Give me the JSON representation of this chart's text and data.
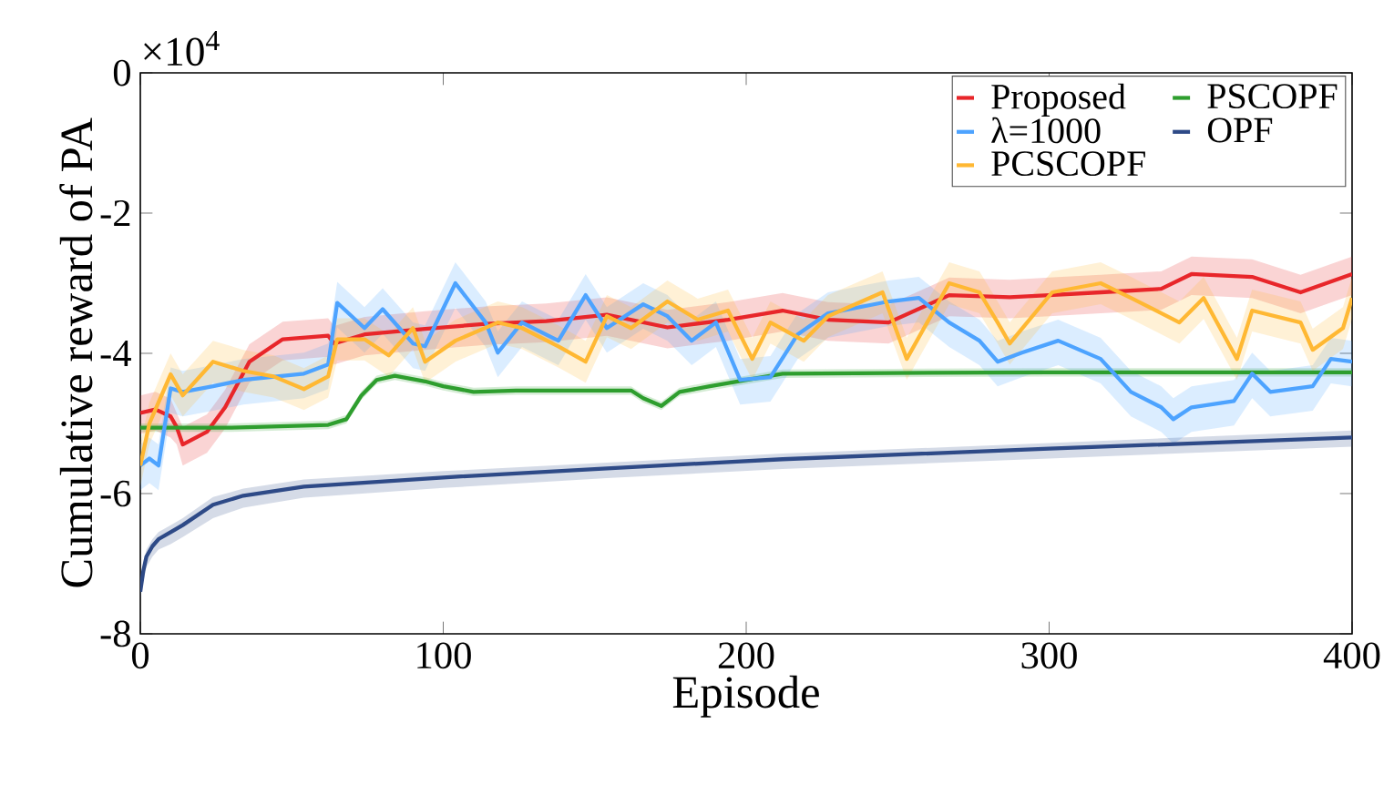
{
  "chart_data": {
    "type": "line",
    "xlabel": "Episode",
    "ylabel": "Cumulative reward of PA",
    "annotations": [
      "×10$^{4}$"
    ],
    "xlim": [
      0,
      400
    ],
    "xticks": [
      0,
      100,
      200,
      300,
      400
    ],
    "ylim": [
      -8,
      0
    ],
    "yticks": [
      -8,
      -6,
      -4,
      -2,
      0
    ],
    "legend": "top right",
    "grid": false,
    "marker": "none",
    "line_style": "solid",
    "series": [
      {
        "name": "Proposed",
        "color": "#e8262a",
        "x": [
          0,
          5,
          10,
          12,
          14,
          22,
          28,
          36,
          47,
          62,
          64,
          74,
          94,
          114,
          134,
          154,
          174,
          194,
          212,
          227,
          247,
          267,
          287,
          300,
          317,
          337,
          347,
          367,
          383,
          400
        ],
        "values": [
          -4.85,
          -4.8,
          -4.9,
          -5.05,
          -5.3,
          -5.12,
          -4.77,
          -4.12,
          -3.8,
          -3.75,
          -3.86,
          -3.73,
          -3.65,
          -3.58,
          -3.54,
          -3.45,
          -3.63,
          -3.52,
          -3.39,
          -3.52,
          -3.56,
          -3.17,
          -3.2,
          -3.17,
          -3.13,
          -3.08,
          -2.87,
          -2.91,
          -3.13,
          -2.87
        ],
        "lower": [
          -5.15,
          -5.1,
          -5.2,
          -5.3,
          -5.6,
          -5.42,
          -5.07,
          -4.42,
          -4.1,
          -4.05,
          -4.16,
          -4.03,
          -3.95,
          -3.88,
          -3.84,
          -3.75,
          -3.93,
          -3.82,
          -3.69,
          -3.82,
          -3.86,
          -3.47,
          -3.5,
          -3.47,
          -3.43,
          -3.38,
          -3.17,
          -3.21,
          -3.43,
          -3.17
        ],
        "upper": [
          -4.6,
          -4.55,
          -4.65,
          -4.85,
          -5.05,
          -4.87,
          -4.52,
          -3.87,
          -3.55,
          -3.5,
          -3.61,
          -3.48,
          -3.4,
          -3.33,
          -3.29,
          -3.2,
          -3.38,
          -3.27,
          -3.14,
          -3.27,
          -3.31,
          -2.92,
          -2.95,
          -2.92,
          -2.88,
          -2.83,
          -2.62,
          -2.66,
          -2.88,
          -2.62
        ]
      },
      {
        "name": "PSCOPF",
        "color": "#2e9e2e",
        "x": [
          0,
          30,
          62,
          68,
          73,
          78,
          84,
          94,
          100,
          110,
          124,
          162,
          166,
          172,
          178,
          188,
          212,
          300,
          400
        ],
        "values": [
          -5.06,
          -5.06,
          -5.02,
          -4.94,
          -4.6,
          -4.38,
          -4.32,
          -4.4,
          -4.47,
          -4.55,
          -4.53,
          -4.53,
          -4.64,
          -4.75,
          -4.55,
          -4.47,
          -4.29,
          -4.27,
          -4.27
        ],
        "lower": [
          -5.12,
          -5.12,
          -5.08,
          -5.0,
          -4.66,
          -4.44,
          -4.38,
          -4.46,
          -4.53,
          -4.61,
          -4.59,
          -4.59,
          -4.7,
          -4.81,
          -4.61,
          -4.53,
          -4.35,
          -4.33,
          -4.33
        ],
        "upper": [
          -5.0,
          -5.0,
          -4.96,
          -4.88,
          -4.54,
          -4.32,
          -4.26,
          -4.34,
          -4.41,
          -4.49,
          -4.47,
          -4.47,
          -4.58,
          -4.69,
          -4.49,
          -4.41,
          -4.23,
          -4.21,
          -4.21
        ]
      },
      {
        "name": "λ=1000",
        "color": "#4da3ff",
        "x": [
          0,
          3,
          6,
          10,
          14,
          24,
          34,
          54,
          62,
          65,
          74,
          80,
          90,
          94,
          104,
          114,
          118,
          126,
          138,
          147,
          154,
          166,
          174,
          182,
          190,
          198,
          208,
          217,
          227,
          247,
          257,
          267,
          277,
          283,
          291,
          303,
          317,
          327,
          337,
          341,
          347,
          361,
          367,
          373,
          387,
          393,
          400
        ],
        "values": [
          -5.6,
          -5.5,
          -5.6,
          -4.5,
          -4.55,
          -4.47,
          -4.38,
          -4.29,
          -4.16,
          -3.28,
          -3.64,
          -3.37,
          -3.86,
          -3.9,
          -3.0,
          -3.56,
          -3.99,
          -3.56,
          -3.82,
          -3.17,
          -3.64,
          -3.3,
          -3.47,
          -3.82,
          -3.56,
          -4.38,
          -4.34,
          -3.73,
          -3.43,
          -3.26,
          -3.21,
          -3.56,
          -3.82,
          -4.12,
          -3.99,
          -3.82,
          -4.08,
          -4.55,
          -4.77,
          -4.94,
          -4.77,
          -4.68,
          -4.29,
          -4.55,
          -4.47,
          -4.08,
          -4.12
        ],
        "lower": [
          -5.95,
          -5.85,
          -5.95,
          -4.85,
          -4.9,
          -4.82,
          -4.73,
          -4.64,
          -4.51,
          -3.63,
          -3.99,
          -3.72,
          -4.21,
          -4.25,
          -3.35,
          -3.91,
          -4.34,
          -3.91,
          -4.17,
          -3.52,
          -3.99,
          -3.65,
          -3.82,
          -4.17,
          -3.91,
          -4.73,
          -4.69,
          -4.08,
          -3.78,
          -3.61,
          -3.56,
          -3.91,
          -4.17,
          -4.47,
          -4.34,
          -4.17,
          -4.43,
          -4.9,
          -5.12,
          -5.29,
          -5.12,
          -5.03,
          -4.64,
          -4.9,
          -4.82,
          -4.43,
          -4.47
        ],
        "upper": [
          -5.3,
          -5.2,
          -5.3,
          -4.2,
          -4.25,
          -4.17,
          -4.08,
          -3.99,
          -3.86,
          -2.98,
          -3.34,
          -3.07,
          -3.56,
          -3.6,
          -2.7,
          -3.26,
          -3.69,
          -3.26,
          -3.52,
          -2.87,
          -3.34,
          -3.0,
          -3.17,
          -3.52,
          -3.26,
          -4.08,
          -4.04,
          -3.43,
          -3.13,
          -2.96,
          -2.91,
          -3.26,
          -3.52,
          -3.82,
          -3.69,
          -3.52,
          -3.78,
          -4.25,
          -4.47,
          -4.64,
          -4.47,
          -4.38,
          -3.99,
          -4.25,
          -4.17,
          -3.78,
          -3.82
        ]
      },
      {
        "name": "OPF",
        "color": "#2e4a87",
        "x": [
          0,
          1,
          2,
          4,
          6,
          10,
          14,
          24,
          34,
          54,
          100,
          154,
          212,
          300,
          400
        ],
        "values": [
          -7.4,
          -7.1,
          -6.9,
          -6.75,
          -6.65,
          -6.55,
          -6.45,
          -6.16,
          -6.03,
          -5.9,
          -5.77,
          -5.64,
          -5.51,
          -5.36,
          -5.2
        ],
        "lower": [
          -7.5,
          -7.25,
          -7.05,
          -6.9,
          -6.8,
          -6.72,
          -6.62,
          -6.35,
          -6.2,
          -6.06,
          -5.92,
          -5.78,
          -5.65,
          -5.5,
          -5.33
        ],
        "upper": [
          -7.3,
          -7.0,
          -6.8,
          -6.65,
          -6.55,
          -6.45,
          -6.35,
          -6.05,
          -5.93,
          -5.8,
          -5.68,
          -5.56,
          -5.43,
          -5.28,
          -5.1
        ]
      },
      {
        "name": "PCSCOPF",
        "color": "#ffb833",
        "x": [
          0,
          3,
          6,
          10,
          14,
          24,
          34,
          44,
          54,
          62,
          65,
          74,
          82,
          90,
          94,
          104,
          118,
          126,
          138,
          147,
          154,
          162,
          174,
          184,
          194,
          202,
          208,
          219,
          227,
          245,
          253,
          267,
          277,
          283,
          287,
          301,
          317,
          327,
          343,
          351,
          362,
          367,
          383,
          387,
          397,
          400
        ],
        "values": [
          -5.6,
          -5.0,
          -4.7,
          -4.3,
          -4.6,
          -4.12,
          -4.25,
          -4.33,
          -4.51,
          -4.33,
          -3.8,
          -3.8,
          -4.03,
          -3.64,
          -4.12,
          -3.82,
          -3.56,
          -3.64,
          -3.9,
          -4.12,
          -3.47,
          -3.64,
          -3.26,
          -3.52,
          -3.39,
          -4.08,
          -3.56,
          -3.82,
          -3.47,
          -3.13,
          -4.08,
          -3.0,
          -3.13,
          -3.56,
          -3.86,
          -3.13,
          -3.0,
          -3.21,
          -3.56,
          -3.21,
          -4.08,
          -3.39,
          -3.56,
          -3.95,
          -3.64,
          -3.21
        ],
        "lower": [
          -5.9,
          -5.3,
          -5.0,
          -4.6,
          -4.9,
          -4.42,
          -4.55,
          -4.63,
          -4.81,
          -4.63,
          -4.1,
          -4.1,
          -4.33,
          -3.94,
          -4.42,
          -4.12,
          -3.86,
          -3.94,
          -4.2,
          -4.42,
          -3.77,
          -3.94,
          -3.56,
          -3.82,
          -3.69,
          -4.38,
          -3.86,
          -4.12,
          -3.77,
          -3.43,
          -4.38,
          -3.3,
          -3.43,
          -3.86,
          -4.16,
          -3.43,
          -3.3,
          -3.51,
          -3.86,
          -3.51,
          -4.38,
          -3.69,
          -3.86,
          -4.25,
          -3.94,
          -3.51
        ],
        "upper": [
          -5.3,
          -4.7,
          -4.4,
          -4.0,
          -4.3,
          -3.82,
          -3.95,
          -4.03,
          -4.21,
          -4.03,
          -3.5,
          -3.5,
          -3.73,
          -3.34,
          -3.82,
          -3.52,
          -3.26,
          -3.34,
          -3.6,
          -3.82,
          -3.17,
          -3.34,
          -2.96,
          -3.22,
          -3.09,
          -3.78,
          -3.26,
          -3.52,
          -3.17,
          -2.83,
          -3.78,
          -2.7,
          -2.83,
          -3.26,
          -3.56,
          -2.83,
          -2.7,
          -2.91,
          -3.26,
          -2.91,
          -3.78,
          -3.09,
          -3.26,
          -3.65,
          -3.34,
          -2.91
        ]
      }
    ]
  }
}
